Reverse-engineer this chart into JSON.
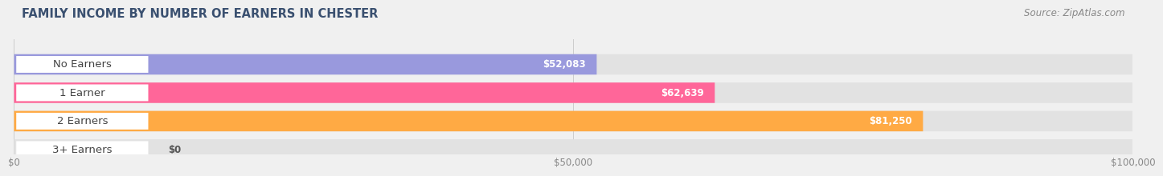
{
  "title": "FAMILY INCOME BY NUMBER OF EARNERS IN CHESTER",
  "source": "Source: ZipAtlas.com",
  "categories": [
    "No Earners",
    "1 Earner",
    "2 Earners",
    "3+ Earners"
  ],
  "values": [
    52083,
    62639,
    81250,
    0
  ],
  "bar_colors": [
    "#9999dd",
    "#ff6699",
    "#ffaa44",
    "#ffbbaa"
  ],
  "value_labels": [
    "$52,083",
    "$62,639",
    "$81,250",
    "$0"
  ],
  "xlim": [
    0,
    100000
  ],
  "xticks": [
    0,
    50000,
    100000
  ],
  "xtick_labels": [
    "$0",
    "$50,000",
    "$100,000"
  ],
  "background_color": "#f0f0f0",
  "bar_bg_color": "#e2e2e2",
  "title_fontsize": 10.5,
  "source_fontsize": 8.5,
  "label_fontsize": 9.5,
  "value_fontsize": 8.5,
  "title_color": "#3a5070",
  "source_color": "#888888"
}
